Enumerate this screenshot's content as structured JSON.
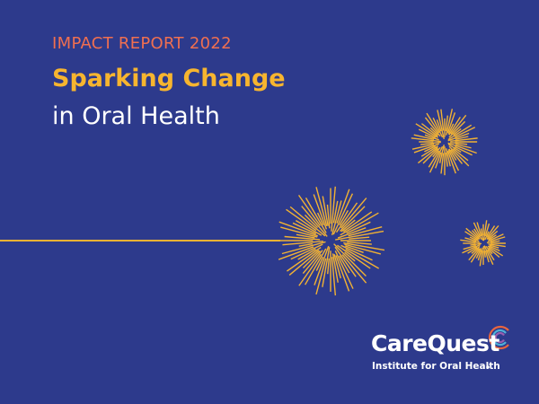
{
  "header": {
    "eyebrow": "IMPACT REPORT 2022",
    "title_line1": "Sparking Change",
    "title_line2": "in Oral Health"
  },
  "logo": {
    "name": "CareQuest",
    "tagline": "Institute for Oral Health"
  }
}
